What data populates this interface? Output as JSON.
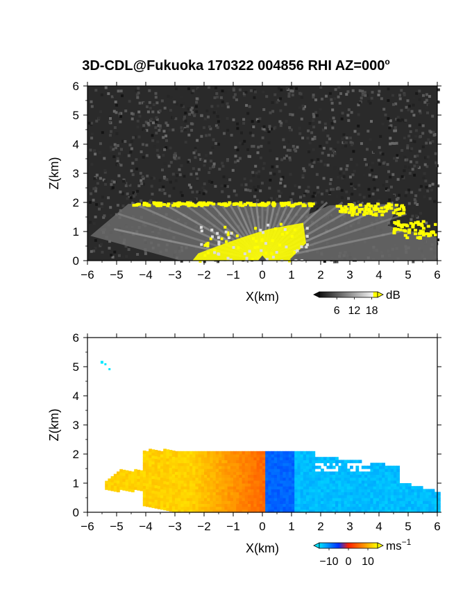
{
  "figure": {
    "title_main": "3D-CDL@Fukuoka 170322 004856 RHI AZ=000",
    "title_sup": "o"
  },
  "chart_data": [
    {
      "type": "heatmap",
      "panel": "top",
      "variable_unit": "dB",
      "xlabel": "X(km)",
      "ylabel": "Z(km)",
      "xlim": [
        -6,
        6
      ],
      "ylim": [
        0,
        6
      ],
      "xticks": [
        -6,
        -5,
        -4,
        -3,
        -2,
        -1,
        0,
        1,
        2,
        3,
        4,
        5,
        6
      ],
      "yticks": [
        0,
        1,
        2,
        3,
        4,
        5,
        6
      ],
      "colorbar": {
        "label": "dB",
        "ticks": [
          6,
          12,
          18
        ],
        "range": [
          0,
          20
        ],
        "palette": "grayscale-to-yellow"
      },
      "features": [
        {
          "name": "cloud-top layer",
          "x_range": [
            -4.5,
            1.7
          ],
          "z": 2.0,
          "value_db": 20
        },
        {
          "name": "near-range plume",
          "x_range": [
            -2.2,
            1.5
          ],
          "z_range": [
            0,
            1.3
          ],
          "value_db": 20
        },
        {
          "name": "cloud-top layer east",
          "x_range": [
            2.4,
            4.8
          ],
          "z_range": [
            1.4,
            2.0
          ],
          "value_db": 20
        }
      ],
      "background_noise_db": [
        2,
        6
      ]
    },
    {
      "type": "heatmap",
      "panel": "bottom",
      "variable_unit": "ms-1",
      "xlabel": "X(km)",
      "ylabel": "Z(km)",
      "xlim": [
        -6,
        6
      ],
      "ylim": [
        0,
        6
      ],
      "xticks": [
        -6,
        -5,
        -4,
        -3,
        -2,
        -1,
        0,
        1,
        2,
        3,
        4,
        5,
        6
      ],
      "yticks": [
        0,
        1,
        2,
        3,
        4,
        5,
        6
      ],
      "colorbar": {
        "label_base": "ms",
        "label_exp": "−1",
        "ticks": [
          -10,
          0,
          10
        ],
        "range": [
          -15,
          15
        ],
        "palette": "cyan-blue-red-yellow"
      },
      "features": [
        {
          "name": "negative X side",
          "x_range": [
            -5.4,
            -0.1
          ],
          "z_range": [
            0,
            2.1
          ],
          "velocity_ms": [
            5,
            12
          ]
        },
        {
          "name": "positive X side",
          "x_range": [
            0,
            6
          ],
          "z_range": [
            0,
            2.1
          ],
          "velocity_ms": [
            -15,
            -5
          ]
        },
        {
          "name": "isolated echo",
          "x": -5.5,
          "z": 5.1,
          "velocity_ms": -13
        }
      ]
    }
  ]
}
